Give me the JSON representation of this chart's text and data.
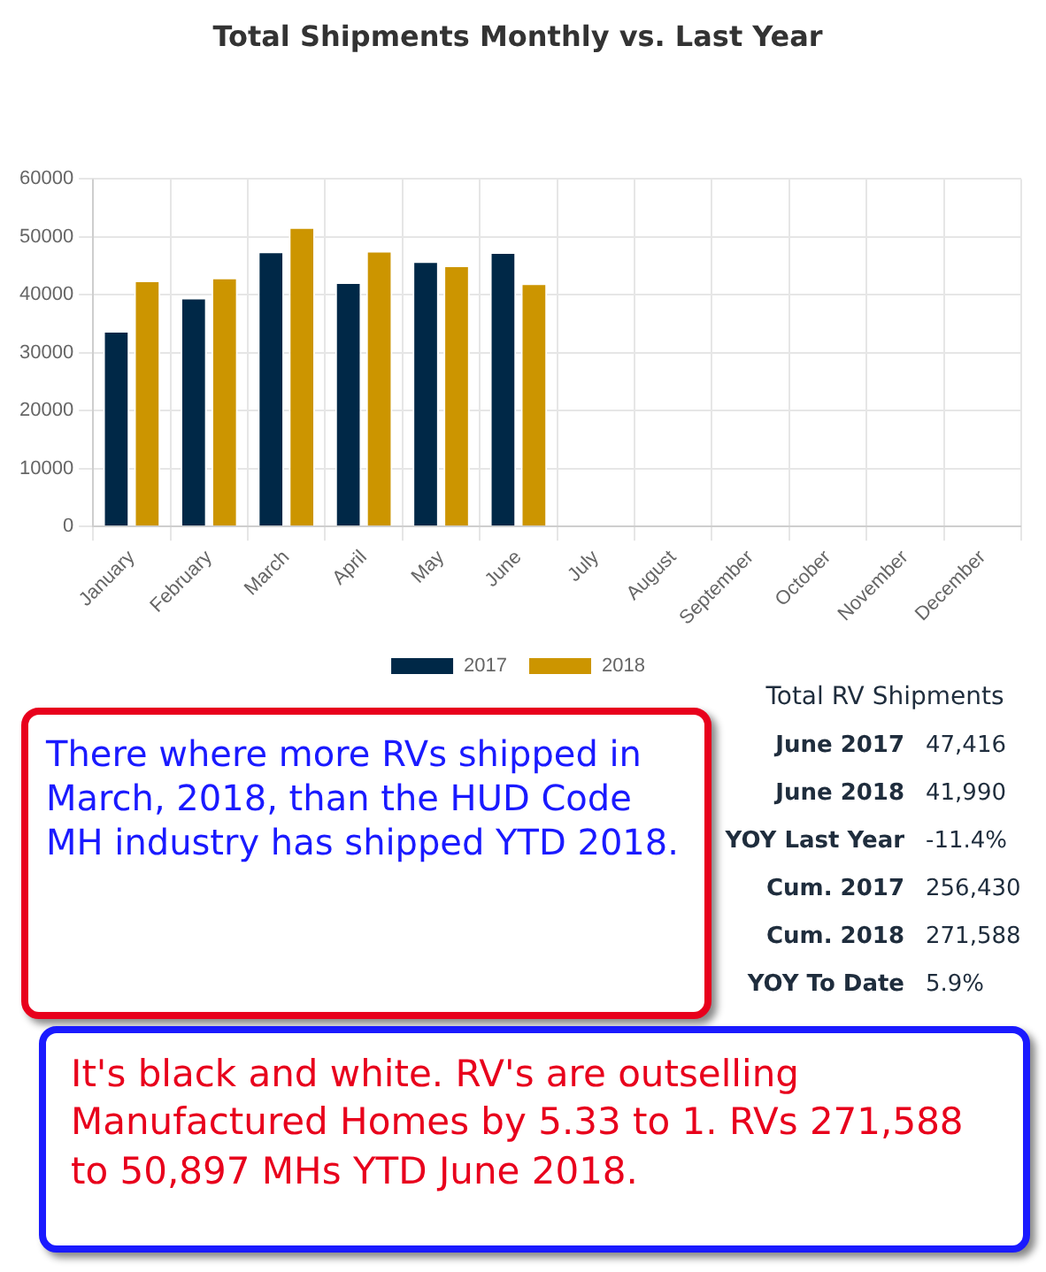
{
  "chart_data": {
    "type": "bar",
    "title": "Total Shipments Monthly vs. Last Year",
    "categories": [
      "January",
      "February",
      "March",
      "April",
      "May",
      "June",
      "July",
      "August",
      "September",
      "October",
      "November",
      "December"
    ],
    "series": [
      {
        "name": "2017",
        "color": "#002847",
        "values": [
          33800,
          39500,
          47500,
          42200,
          45800,
          47400,
          null,
          null,
          null,
          null,
          null,
          null
        ]
      },
      {
        "name": "2018",
        "color": "#cc9500",
        "values": [
          42500,
          43000,
          51700,
          47600,
          45100,
          42000,
          null,
          null,
          null,
          null,
          null,
          null
        ]
      }
    ],
    "ylim": [
      0,
      60000
    ],
    "yticks": [
      0,
      10000,
      20000,
      30000,
      40000,
      50000,
      60000
    ],
    "grid": true,
    "legend": "bottom",
    "annotations": [
      "Total RV Shipments",
      "June 2017",
      "47,416",
      "June 2018",
      "41,990",
      "YOY Last Year",
      "-11.4%",
      "Cum. 2017",
      "256,430",
      "Cum. 2018",
      "271,588",
      "YOY To Date",
      "5.9%",
      "There where more RVs shipped in March, 2018, than the HUD Code MH industry has shipped YTD 2018.",
      "It's black and white. RV's are outselling Manufactured Homes by 5.33 to 1. RVs 271,588 to 50,897 MHs YTD June 2018."
    ]
  }
}
